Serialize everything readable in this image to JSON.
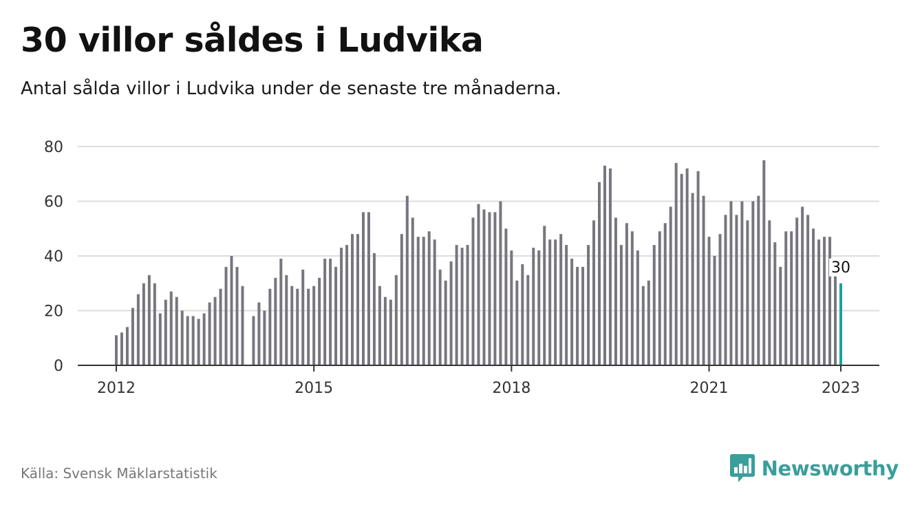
{
  "title": "30 villor såldes i Ludvika",
  "subtitle": "Antal sålda villor i Ludvika under de senaste tre månaderna.",
  "source": "Källa: Svensk Mäklarstatistik",
  "brand": {
    "name": "Newsworthy",
    "icon": "bar-chart-speech-bubble-icon",
    "color": "#3a9e9b"
  },
  "colors": {
    "bar": "#76767e",
    "highlight": "#1aa3a0",
    "grid": "#dddddd",
    "axis": "#333333"
  },
  "chart_data": {
    "type": "bar",
    "title": "30 villor såldes i Ludvika",
    "subtitle": "Antal sålda villor i Ludvika under de senaste tre månaderna.",
    "x_start": "2012-01",
    "x_end": "2023-01",
    "xlabel": "",
    "ylabel": "",
    "ylim": [
      0,
      80
    ],
    "y_ticks": [
      0,
      20,
      40,
      60,
      80
    ],
    "x_ticks": [
      "2012",
      "2015",
      "2018",
      "2021",
      "2023"
    ],
    "grid": true,
    "legend": "none",
    "highlight_last": true,
    "last_value_label": "30",
    "values": [
      11,
      12,
      14,
      21,
      26,
      30,
      33,
      30,
      19,
      24,
      27,
      25,
      20,
      18,
      18,
      17,
      19,
      23,
      25,
      28,
      36,
      40,
      36,
      29,
      null,
      18,
      23,
      20,
      28,
      32,
      39,
      33,
      29,
      28,
      35,
      28,
      29,
      32,
      39,
      39,
      36,
      43,
      44,
      48,
      48,
      56,
      56,
      41,
      29,
      25,
      24,
      33,
      48,
      62,
      54,
      47,
      47,
      49,
      46,
      35,
      31,
      38,
      44,
      43,
      44,
      54,
      59,
      57,
      56,
      56,
      60,
      50,
      42,
      31,
      37,
      33,
      43,
      42,
      51,
      46,
      46,
      48,
      44,
      39,
      36,
      36,
      44,
      53,
      67,
      73,
      72,
      54,
      44,
      52,
      49,
      42,
      29,
      31,
      44,
      49,
      52,
      58,
      74,
      70,
      72,
      63,
      71,
      62,
      47,
      40,
      48,
      55,
      60,
      55,
      60,
      53,
      60,
      62,
      75,
      53,
      45,
      36,
      49,
      49,
      54,
      58,
      55,
      50,
      46,
      47,
      47,
      34,
      30
    ]
  }
}
